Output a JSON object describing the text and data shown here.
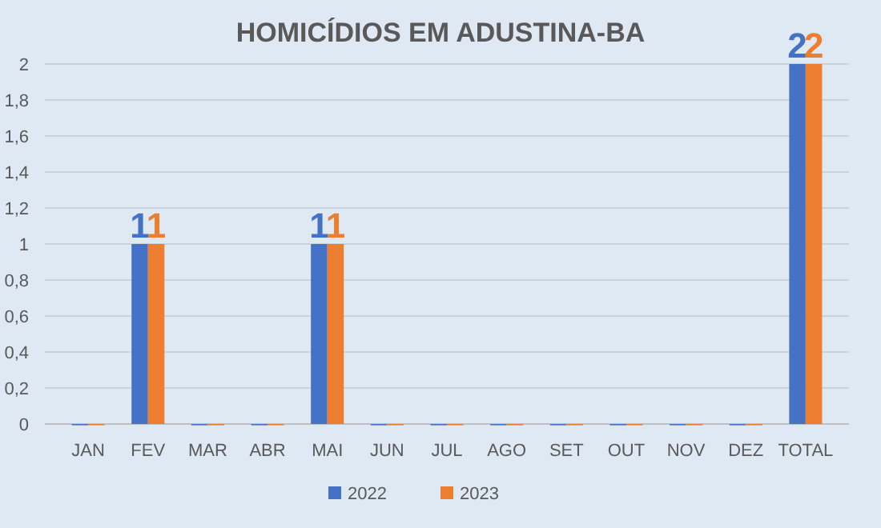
{
  "chart_data": {
    "type": "bar",
    "title": "HOMICÍDIOS EM ADUSTINA-BA",
    "categories": [
      "JAN",
      "FEV",
      "MAR",
      "ABR",
      "MAI",
      "JUN",
      "JUL",
      "AGO",
      "SET",
      "OUT",
      "NOV",
      "DEZ",
      "TOTAL"
    ],
    "series": [
      {
        "name": "2022",
        "color": "#4472c4",
        "values": [
          0,
          1,
          0,
          0,
          1,
          0,
          0,
          0,
          0,
          0,
          0,
          0,
          2
        ],
        "value_labels": [
          null,
          "1",
          null,
          null,
          "1",
          null,
          null,
          null,
          null,
          null,
          null,
          null,
          "2"
        ]
      },
      {
        "name": "2023",
        "color": "#ed7d31",
        "values": [
          0,
          1,
          0,
          0,
          1,
          0,
          0,
          0,
          0,
          0,
          0,
          0,
          2
        ],
        "value_labels": [
          null,
          "1",
          null,
          null,
          "1",
          null,
          null,
          null,
          null,
          null,
          null,
          null,
          "2"
        ]
      }
    ],
    "ylim": [
      0,
      2
    ],
    "yticks": [
      0,
      {
        "value": 0.2,
        "label": "0,2"
      },
      {
        "value": 0.4,
        "label": "0,4"
      },
      {
        "value": 0.6,
        "label": "0,6"
      },
      {
        "value": 0.8,
        "label": "0,8"
      },
      1,
      {
        "value": 1.2,
        "label": "1,2"
      },
      {
        "value": 1.4,
        "label": "1,4"
      },
      {
        "value": 1.6,
        "label": "1,6"
      },
      {
        "value": 1.8,
        "label": "1,8"
      },
      2
    ],
    "grid": "y",
    "legend": "bottom"
  }
}
